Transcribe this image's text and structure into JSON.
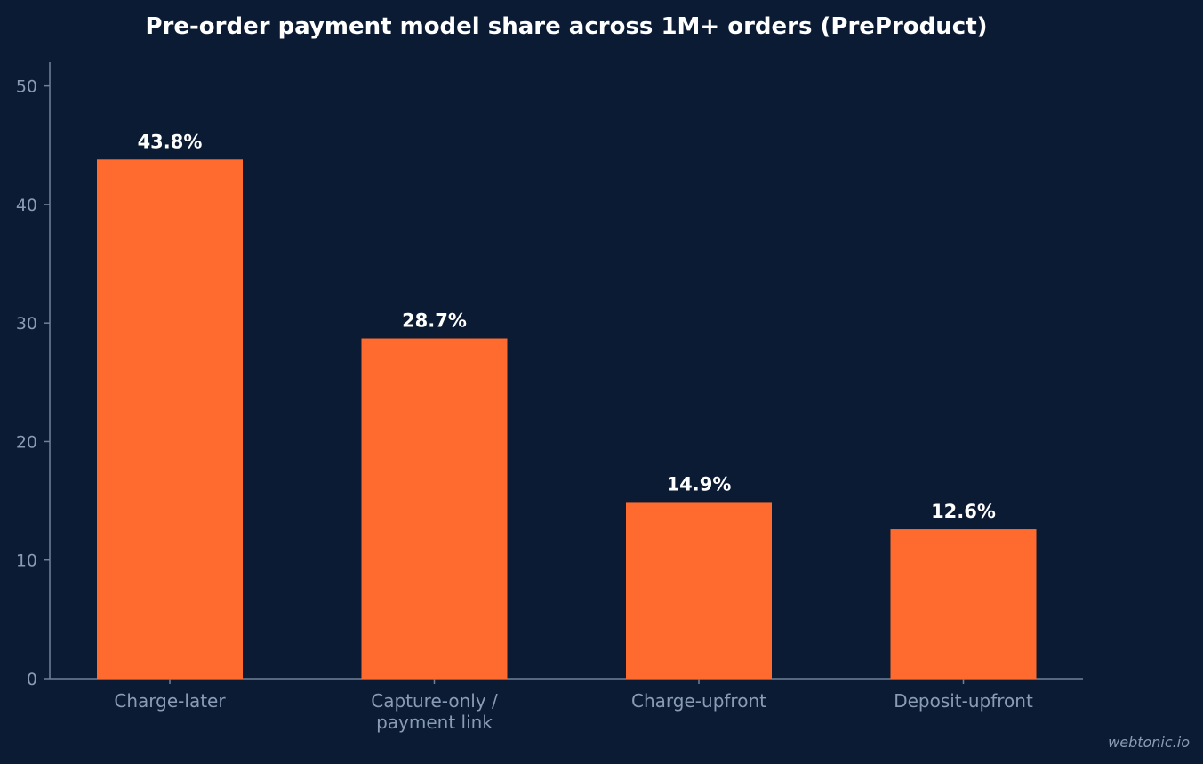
{
  "chart_data": {
    "type": "bar",
    "title": "Pre-order payment model share across 1M+ orders (PreProduct)",
    "categories": [
      [
        "Charge-later"
      ],
      [
        "Capture-only /",
        "payment link"
      ],
      [
        "Charge-upfront"
      ],
      [
        "Deposit-upfront"
      ]
    ],
    "values": [
      43.8,
      28.7,
      14.9,
      12.6
    ],
    "value_labels": [
      "43.8%",
      "28.7%",
      "14.9%",
      "12.6%"
    ],
    "ylim": [
      0,
      52
    ],
    "yticks": [
      0,
      10,
      20,
      30,
      40,
      50
    ],
    "xlabel": "",
    "ylabel": "",
    "grid": false,
    "colors": {
      "bar": "#ff6b2e",
      "background": "#0b1b33",
      "axis": "#6f819c",
      "tick_text": "#8a9bb5",
      "title_text": "#ffffff"
    }
  },
  "watermark": "webtonic.io"
}
